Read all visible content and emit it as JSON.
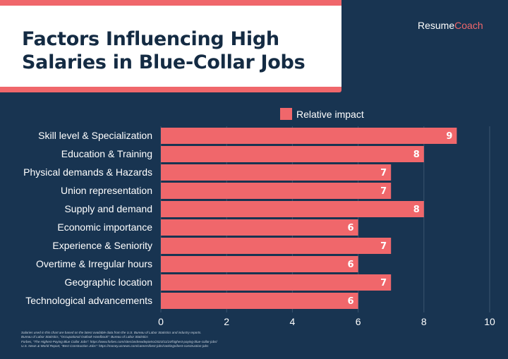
{
  "brand": {
    "part1": "Resume",
    "part2": "Coach"
  },
  "chart_data": {
    "type": "bar",
    "orientation": "horizontal",
    "title": "Factors Influencing High\nSalaries in Blue-Collar Jobs",
    "categories": [
      "Skill level & Specialization",
      "Education & Training",
      "Physical demands & Hazards",
      "Union representation",
      "Supply and demand",
      "Economic importance",
      "Experience & Seniority",
      "Overtime & Irregular hours",
      "Geographic location",
      "Technological advancements"
    ],
    "series": [
      {
        "name": "Relative impact",
        "values": [
          9,
          8,
          7,
          7,
          8,
          6,
          7,
          6,
          7,
          6
        ]
      }
    ],
    "xlim": [
      0,
      10
    ],
    "xticks": [
      0,
      2,
      4,
      6,
      8,
      10
    ],
    "data_labels": true,
    "grid": true,
    "legend": "top",
    "colors": {
      "bar": "#f0676b",
      "background": "#183451",
      "text": "#ffffff",
      "grid": "#3a5470"
    }
  },
  "footnotes": [
    "Salaries used in this chart are based on the latest available data from the U.S. Bureau of Labor Statistics and industry reports.",
    "Bureau of Labor Statistics, \"Occupational Outlook Handbook\": Bureau of Labor Statistics",
    "Forbes, \"The Highest-Paying Blue Collar Jobs\": https://www.forbes.com/sites/andrewdepietro/2023/11/24/highest-paying-blue-collar-jobs/",
    "U.S. News & World Report, \"Best Construction Jobs\": https://money.usnews.com/careers/best-jobs/rankings/best-construction-jobs"
  ]
}
